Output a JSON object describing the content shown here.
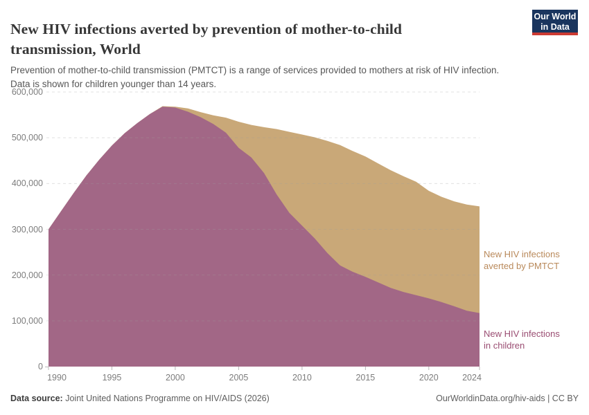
{
  "header": {
    "title_line1": "New HIV infections averted by prevention of mother-to-child",
    "title_line2": "transmission, World",
    "subtitle_line1": "Prevention of mother-to-child transmission (PMTCT) is a range of services provided to mothers at risk of HIV infection.",
    "subtitle_line2": "Data is shown for children younger than 14 years."
  },
  "logo": {
    "line1": "Our World",
    "line2": "in Data",
    "bg_color": "#1a355e",
    "bar_color": "#cc3b33"
  },
  "annotations": {
    "averted": {
      "line1": "New HIV infections",
      "line2": "averted by PMTCT",
      "color": "#b9895a"
    },
    "children": {
      "line1": "New HIV infections",
      "line2": "in children",
      "color": "#9a4d72"
    }
  },
  "footer": {
    "source_label": "Data source:",
    "source_text": "Joint United Nations Programme on HIV/AIDS (2026)",
    "credit": "OurWorldinData.org/hiv-aids | CC BY"
  },
  "chart_data": {
    "type": "area",
    "stacked": true,
    "title": "New HIV infections averted by prevention of mother-to-child transmission, World",
    "xlabel": "",
    "ylabel": "",
    "ylim": [
      0,
      600000
    ],
    "y_ticks": [
      0,
      100000,
      200000,
      300000,
      400000,
      500000,
      600000
    ],
    "x_ticks": [
      1990,
      1995,
      2000,
      2005,
      2010,
      2015,
      2020,
      2024
    ],
    "grid": "horizontal-dashed",
    "legend_position": "right-annotations",
    "x": [
      1990,
      1991,
      1992,
      1993,
      1994,
      1995,
      1996,
      1997,
      1998,
      1999,
      2000,
      2001,
      2002,
      2003,
      2004,
      2005,
      2006,
      2007,
      2008,
      2009,
      2010,
      2011,
      2012,
      2013,
      2014,
      2015,
      2016,
      2017,
      2018,
      2019,
      2020,
      2021,
      2022,
      2023,
      2024
    ],
    "series": [
      {
        "name": "New HIV infections in children",
        "color": "#a26786",
        "values": [
          300000,
          340000,
          380000,
          418000,
          452000,
          483000,
          510000,
          532000,
          552000,
          568000,
          566000,
          557000,
          545000,
          530000,
          511000,
          478000,
          457000,
          423000,
          376000,
          336000,
          308000,
          280000,
          248000,
          221000,
          207000,
          196000,
          184000,
          172000,
          163000,
          156000,
          149000,
          141000,
          132000,
          122000,
          117000
        ]
      },
      {
        "name": "New HIV infections averted by PMTCT",
        "color": "#c9a878",
        "values": [
          0,
          0,
          0,
          0,
          0,
          0,
          0,
          0,
          0,
          1000,
          2000,
          7000,
          11000,
          19000,
          33000,
          57000,
          71000,
          100000,
          143000,
          177000,
          199000,
          221000,
          245000,
          263000,
          264000,
          263000,
          260000,
          257000,
          253000,
          248000,
          235000,
          230000,
          229000,
          232000,
          233000
        ]
      }
    ]
  }
}
